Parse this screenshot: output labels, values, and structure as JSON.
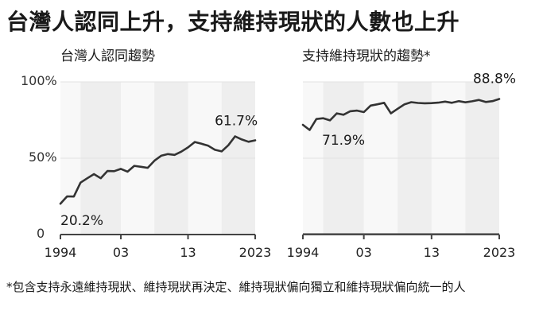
{
  "title": "台灣人認同上升，支持維持現狀的人數也上升",
  "footnote": "*包含支持永遠維持現狀、維持現狀再決定、維持現狀偏向獨立和維持現狀偏向統一的人",
  "y_tick_labels": [
    "100%",
    "50%",
    "0"
  ],
  "chart_data": [
    {
      "type": "line",
      "title": "台灣人認同趨勢",
      "x_tick_labels": [
        "1994",
        "03",
        "13",
        "2023"
      ],
      "xlim": [
        1994,
        2023
      ],
      "ylim": [
        0,
        100
      ],
      "grid": true,
      "annotations": [
        "20.2%",
        "61.7%"
      ],
      "series": [
        {
          "x": [
            1994,
            1995,
            1996,
            1997,
            1998,
            1999,
            2000,
            2001,
            2002,
            2003,
            2004,
            2005,
            2006,
            2007,
            2008,
            2009,
            2010,
            2011,
            2012,
            2013,
            2014,
            2015,
            2016,
            2017,
            2018,
            2019,
            2020,
            2021,
            2022,
            2023
          ],
          "y": [
            20.2,
            25,
            24.9,
            34,
            36.9,
            39.6,
            36.9,
            41.6,
            41.5,
            43,
            41.2,
            45,
            44.4,
            43.7,
            48.4,
            51.6,
            52.7,
            52.2,
            54.3,
            57.1,
            60.6,
            59.5,
            58.2,
            55.5,
            54.5,
            58.5,
            64.3,
            62.3,
            60.8,
            61.7
          ]
        }
      ]
    },
    {
      "type": "line",
      "title": "支持維持現狀的趨勢*",
      "x_tick_labels": [
        "1994",
        "03",
        "13",
        "2023"
      ],
      "xlim": [
        1994,
        2023
      ],
      "ylim": [
        0,
        100
      ],
      "grid": true,
      "annotations": [
        "71.9%",
        "88.8%"
      ],
      "series": [
        {
          "x": [
            1994,
            1995,
            1996,
            1997,
            1998,
            1999,
            2000,
            2001,
            2002,
            2003,
            2004,
            2005,
            2006,
            2007,
            2008,
            2009,
            2010,
            2011,
            2012,
            2013,
            2014,
            2015,
            2016,
            2017,
            2018,
            2019,
            2020,
            2021,
            2022,
            2023
          ],
          "y": [
            71.9,
            68.5,
            75.7,
            76.2,
            74.8,
            79.4,
            78.5,
            80.8,
            81.2,
            80.2,
            84.5,
            85.3,
            86.3,
            79.4,
            82.4,
            85.3,
            86.7,
            86.2,
            86,
            86.1,
            86.4,
            87.1,
            86.3,
            87.4,
            86.6,
            87.3,
            88.2,
            86.8,
            87.4,
            88.8
          ]
        }
      ]
    }
  ]
}
